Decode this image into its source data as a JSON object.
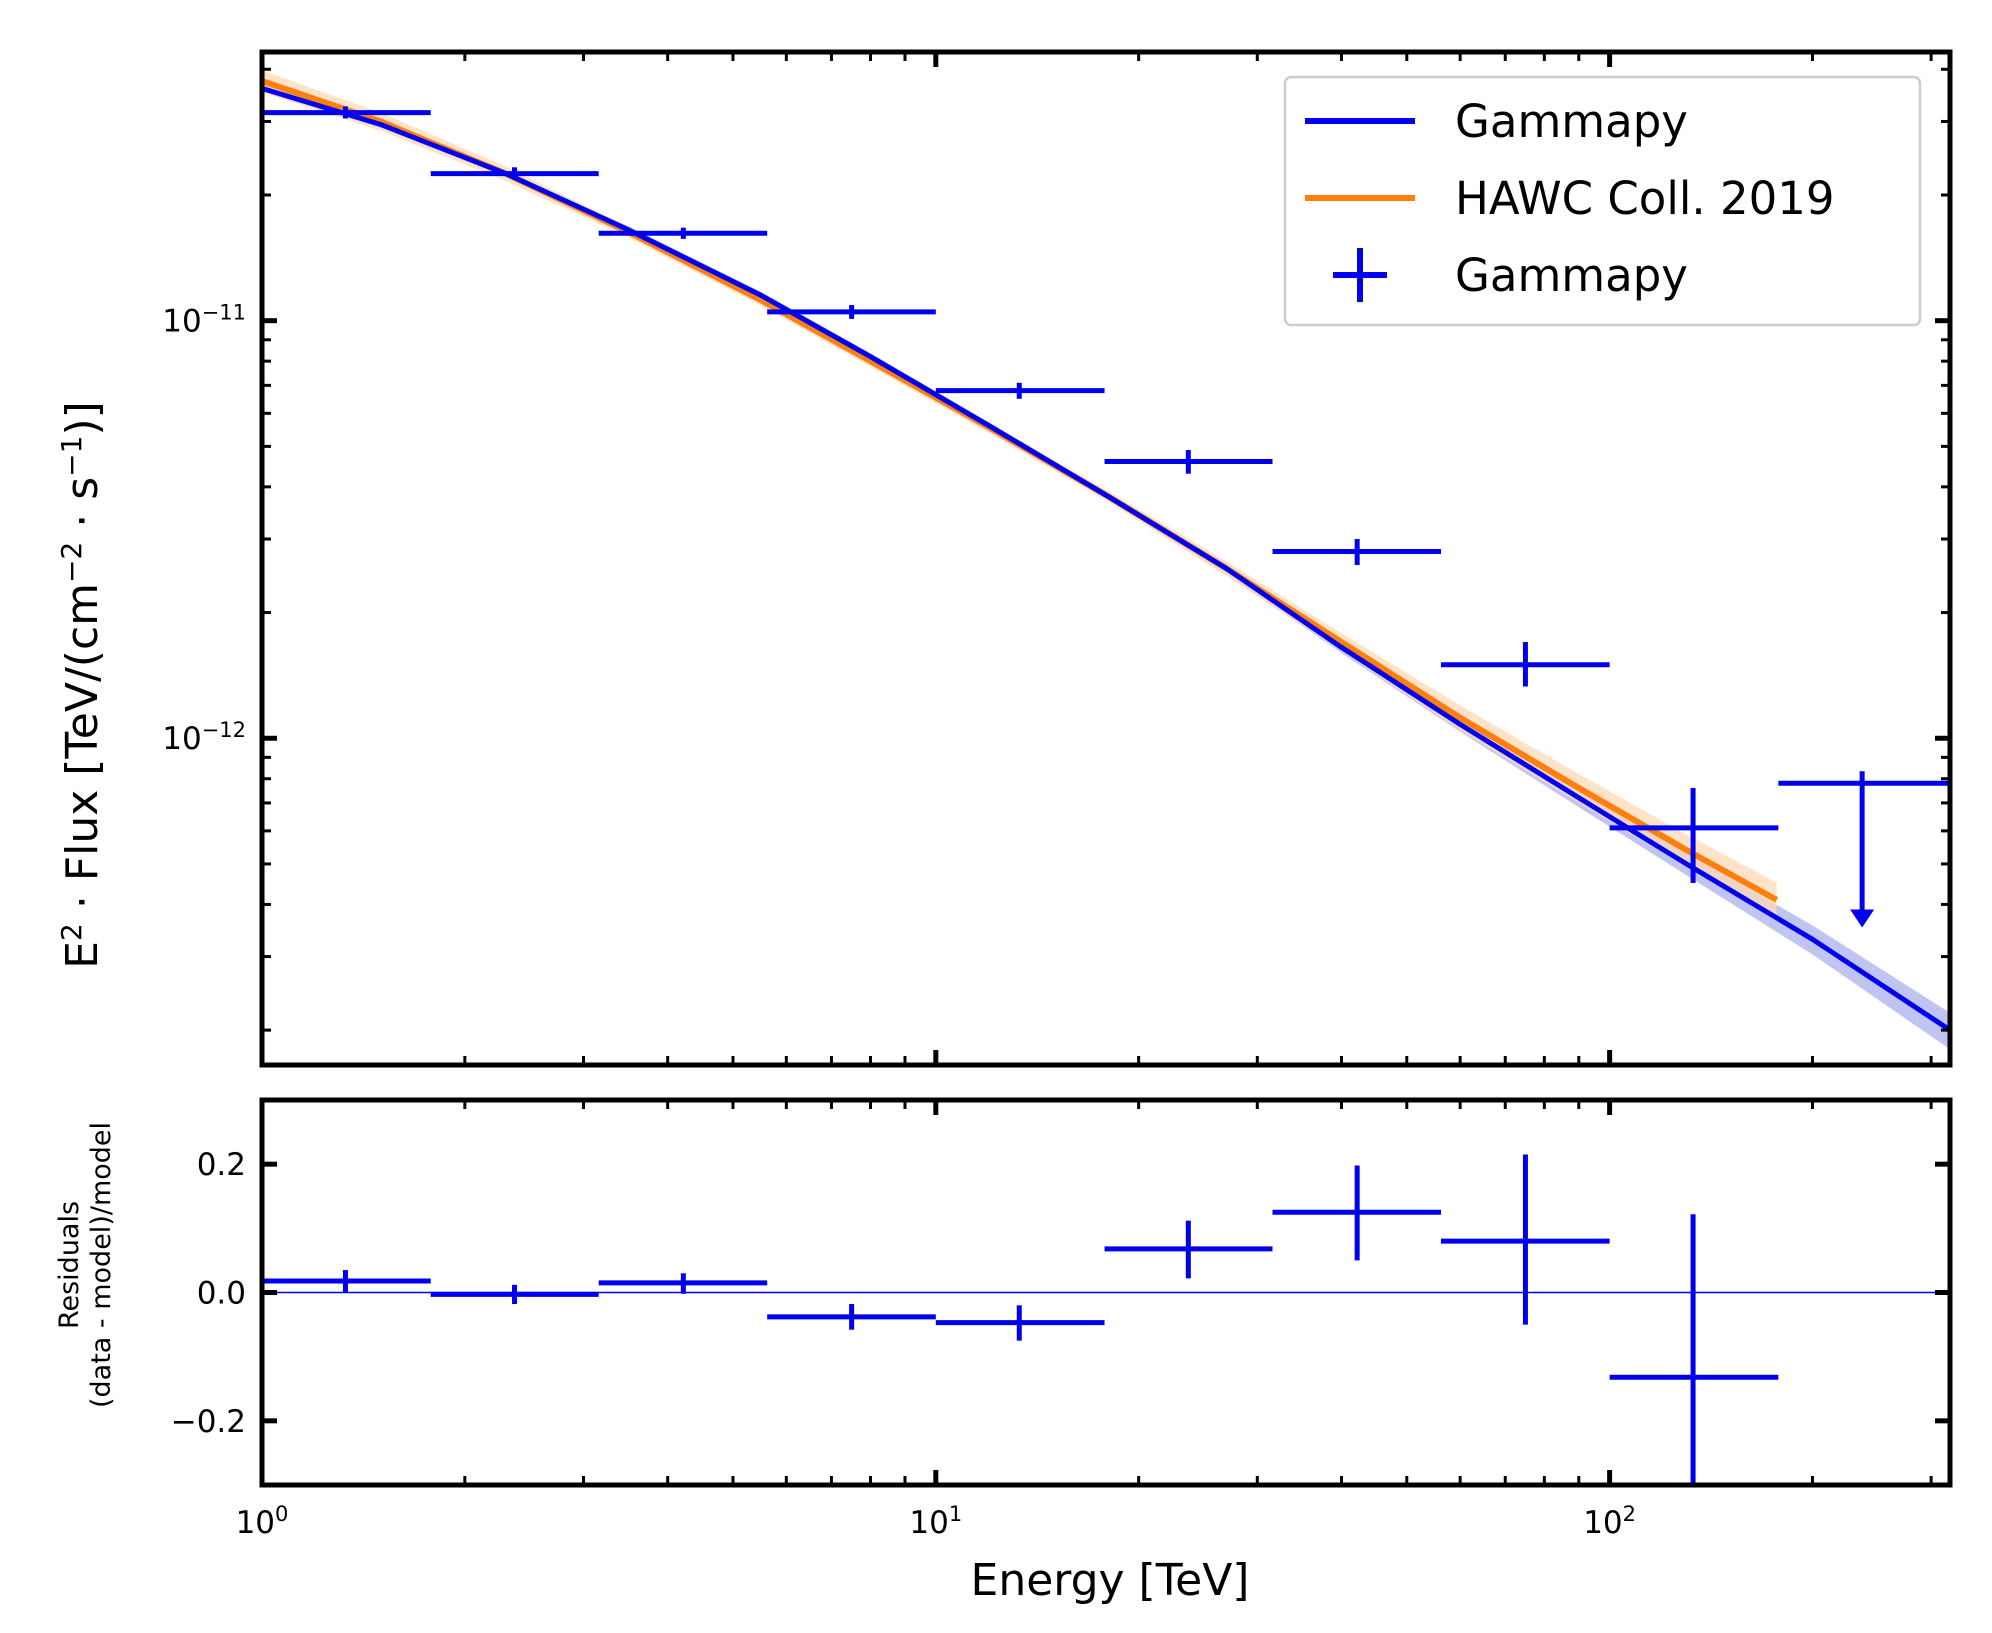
{
  "chart_data": [
    {
      "type": "line",
      "panel": "sed",
      "xlabel": "",
      "ylabel": "E² · Flux [TeV/(cm⁻² · s⁻¹)]",
      "ylabel_parts": {
        "main": "E",
        "sup1": "2",
        "mid": " ·  Flux [TeV/(cm",
        "sup2": "−2",
        "mid2": " ·  s",
        "sup3": "−1",
        "end": ")]"
      },
      "xscale": "log",
      "yscale": "log",
      "xlim": [
        1,
        320
      ],
      "ylim": [
        1.65e-13,
        4.4e-11
      ],
      "y_ticks": [
        {
          "value": 1e-11,
          "base": "10",
          "exp": "−11"
        },
        {
          "value": 1e-12,
          "base": "10",
          "exp": "−12"
        }
      ],
      "legend": {
        "position": "top-right",
        "entries": [
          {
            "label": "Gammapy",
            "kind": "line",
            "color": "#0000ee"
          },
          {
            "label": "HAWC Coll. 2019",
            "kind": "line",
            "color": "#ff7f0e"
          },
          {
            "label": "Gammapy",
            "kind": "errorbar",
            "color": "#0000ee"
          }
        ]
      },
      "series": [
        {
          "name": "Gammapy",
          "kind": "model",
          "color": "#0000ee",
          "band_color": "#aab0ee",
          "x": [
            1,
            1.5,
            2.3,
            3.5,
            5.5,
            8,
            12,
            18,
            27,
            40,
            60,
            90,
            130,
            200,
            320
          ],
          "y": [
            3.6e-11,
            2.95e-11,
            2.25e-11,
            1.65e-11,
            1.15e-11,
            8.2e-12,
            5.6e-12,
            3.8e-12,
            2.55e-12,
            1.65e-12,
            1.08e-12,
            7.2e-13,
            5e-13,
            3.3e-13,
            2e-13
          ],
          "band_rel": [
            0.02,
            0.02,
            0.02,
            0.02,
            0.02,
            0.02,
            0.02,
            0.02,
            0.03,
            0.03,
            0.04,
            0.05,
            0.06,
            0.08,
            0.1
          ]
        },
        {
          "name": "HAWC Coll. 2019",
          "kind": "model",
          "color": "#ff7f0e",
          "band_color": "#fdd9b5",
          "x": [
            1,
            1.5,
            2.3,
            3.5,
            5.5,
            8,
            12,
            18,
            27,
            40,
            60,
            90,
            130,
            177
          ],
          "y": [
            3.75e-11,
            3e-11,
            2.25e-11,
            1.63e-11,
            1.12e-11,
            8e-12,
            5.55e-12,
            3.8e-12,
            2.55e-12,
            1.7e-12,
            1.12e-12,
            7.6e-13,
            5.4e-13,
            4.1e-13
          ],
          "band_rel": [
            0.06,
            0.05,
            0.04,
            0.03,
            0.03,
            0.03,
            0.03,
            0.03,
            0.04,
            0.05,
            0.07,
            0.08,
            0.09,
            0.1
          ]
        }
      ],
      "flux_points": {
        "name": "Gammapy",
        "color": "#0000ee",
        "points": [
          {
            "x": 1.33,
            "xlo": 1.0,
            "xhi": 1.78,
            "y": 3.15e-11,
            "ylo": 3.05e-11,
            "yhi": 3.26e-11
          },
          {
            "x": 2.37,
            "xlo": 1.78,
            "xhi": 3.16,
            "y": 2.25e-11,
            "ylo": 2.18e-11,
            "yhi": 2.33e-11
          },
          {
            "x": 4.22,
            "xlo": 3.16,
            "xhi": 5.62,
            "y": 1.62e-11,
            "ylo": 1.57e-11,
            "yhi": 1.67e-11
          },
          {
            "x": 7.5,
            "xlo": 5.62,
            "xhi": 10.0,
            "y": 1.05e-11,
            "ylo": 1.01e-11,
            "yhi": 1.09e-11
          },
          {
            "x": 13.3,
            "xlo": 10.0,
            "xhi": 17.8,
            "y": 6.8e-12,
            "ylo": 6.5e-12,
            "yhi": 7.1e-12
          },
          {
            "x": 23.7,
            "xlo": 17.8,
            "xhi": 31.6,
            "y": 4.6e-12,
            "ylo": 4.3e-12,
            "yhi": 4.9e-12
          },
          {
            "x": 42.2,
            "xlo": 31.6,
            "xhi": 56.2,
            "y": 2.8e-12,
            "ylo": 2.6e-12,
            "yhi": 3e-12
          },
          {
            "x": 75.0,
            "xlo": 56.2,
            "xhi": 100.0,
            "y": 1.5e-12,
            "ylo": 1.33e-12,
            "yhi": 1.7e-12
          },
          {
            "x": 133.0,
            "xlo": 100.0,
            "xhi": 178.0,
            "y": 6.1e-13,
            "ylo": 4.5e-13,
            "yhi": 7.6e-13
          },
          {
            "x": 237.0,
            "xlo": 178.0,
            "xhi": 320.0,
            "y": 7.8e-13,
            "upper_limit": true,
            "arrow_to": 3.6e-13
          }
        ]
      }
    },
    {
      "type": "scatter",
      "panel": "residuals",
      "xlabel": "Energy [TeV]",
      "ylabel": "Residuals",
      "ylabel2": "(data - model)/model",
      "xscale": "log",
      "xlim": [
        1,
        320
      ],
      "ylim": [
        -0.3,
        0.3
      ],
      "x_ticks": [
        {
          "value": 1,
          "base": "10",
          "exp": "0"
        },
        {
          "value": 10,
          "base": "10",
          "exp": "1"
        },
        {
          "value": 100,
          "base": "10",
          "exp": "2"
        }
      ],
      "y_ticks": [
        {
          "value": 0.2,
          "label": "0.2"
        },
        {
          "value": 0.0,
          "label": "0.0"
        },
        {
          "value": -0.2,
          "label": "−0.2"
        }
      ],
      "zero_line": 0.0,
      "points": [
        {
          "x": 1.33,
          "xlo": 1.0,
          "xhi": 1.78,
          "y": 0.018,
          "ylo": 0.0,
          "yhi": 0.035
        },
        {
          "x": 2.37,
          "xlo": 1.78,
          "xhi": 3.16,
          "y": -0.003,
          "ylo": -0.018,
          "yhi": 0.012
        },
        {
          "x": 4.22,
          "xlo": 3.16,
          "xhi": 5.62,
          "y": 0.015,
          "ylo": -0.002,
          "yhi": 0.03
        },
        {
          "x": 7.5,
          "xlo": 5.62,
          "xhi": 10.0,
          "y": -0.038,
          "ylo": -0.058,
          "yhi": -0.018
        },
        {
          "x": 13.3,
          "xlo": 10.0,
          "xhi": 17.8,
          "y": -0.047,
          "ylo": -0.075,
          "yhi": -0.02
        },
        {
          "x": 23.7,
          "xlo": 17.8,
          "xhi": 31.6,
          "y": 0.068,
          "ylo": 0.022,
          "yhi": 0.112
        },
        {
          "x": 42.2,
          "xlo": 31.6,
          "xhi": 56.2,
          "y": 0.125,
          "ylo": 0.05,
          "yhi": 0.198
        },
        {
          "x": 75.0,
          "xlo": 56.2,
          "xhi": 100.0,
          "y": 0.08,
          "ylo": -0.05,
          "yhi": 0.215
        },
        {
          "x": 133.0,
          "xlo": 100.0,
          "xhi": 178.0,
          "y": -0.132,
          "ylo": -0.3,
          "yhi": 0.122
        }
      ]
    }
  ]
}
